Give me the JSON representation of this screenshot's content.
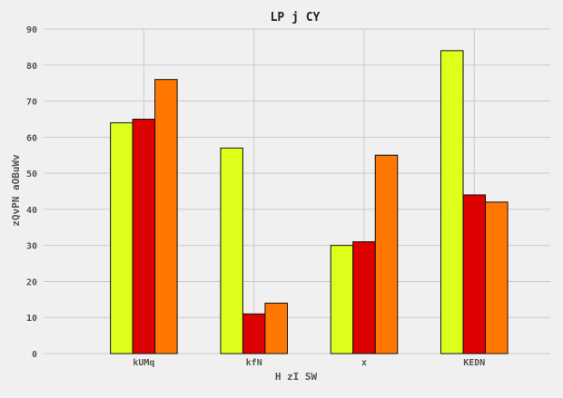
{
  "chart_data": {
    "type": "bar",
    "title": "LP  j CY",
    "xlabel": "H zI SW",
    "ylabel": "zQvPN aOBuWv",
    "categories": [
      "kUMq",
      "kfN",
      "x",
      "KEDN"
    ],
    "series": [
      {
        "values": [
          64,
          57,
          30,
          84
        ],
        "color": "#ddff1a"
      },
      {
        "values": [
          65,
          11,
          31,
          44
        ],
        "color": "#dd0000"
      },
      {
        "values": [
          76,
          14,
          55,
          42
        ],
        "color": "#ff7700"
      }
    ],
    "ylim": [
      0,
      90
    ],
    "yticks": [
      0,
      10,
      20,
      30,
      40,
      50,
      60,
      70,
      80,
      90
    ],
    "grid": true,
    "background": "#f0f0f0",
    "grid_color": "#cccccc"
  }
}
